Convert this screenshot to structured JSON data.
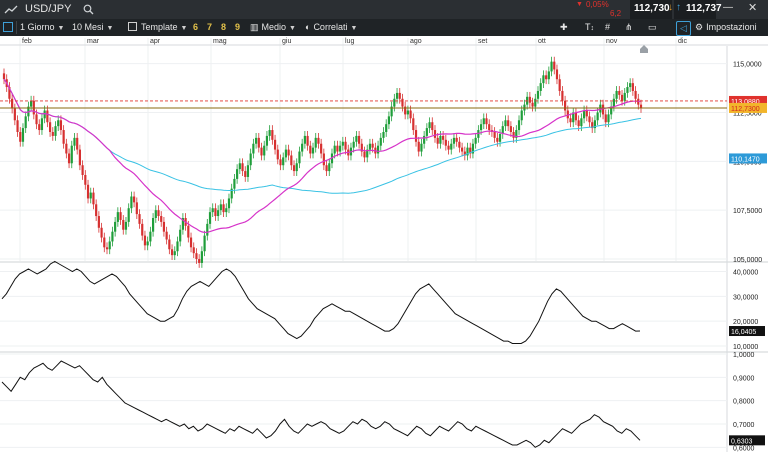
{
  "header": {
    "symbol": "USD/JPY",
    "change_pct": "0,05%",
    "change_abs": "6,2",
    "sell_price": "112,730",
    "buy_price": "112,737",
    "colors": {
      "down": "#e0322d",
      "sell_arrow": "#e09a2d",
      "buy_arrow": "#3fa0d8"
    }
  },
  "toolbar": {
    "interval": "1 Giorno",
    "range": "10 Mesi",
    "template": "Template",
    "periods": [
      "6",
      "7",
      "8",
      "9"
    ],
    "average": "Medio",
    "related": "Correlati",
    "settings": "Impostazioni"
  },
  "chart_data": [
    {
      "type": "candlestick",
      "months": [
        "feb",
        "mar",
        "apr",
        "mag",
        "giu",
        "lug",
        "ago",
        "set",
        "ott",
        "nov",
        "dic"
      ],
      "yticks": [
        "115,0000",
        "112,5000",
        "110,0000",
        "107,5000",
        "105,0000"
      ],
      "ylim": [
        104.9,
        115.9
      ],
      "series": [
        {
          "name": "price",
          "color_up": "#1f9e3a",
          "color_down": "#d63030",
          "close": [
            114.2,
            113.8,
            113.2,
            112.7,
            112.1,
            111.5,
            111.0,
            111.7,
            112.3,
            112.8,
            113.1,
            112.4,
            111.9,
            111.6,
            112.2,
            112.6,
            112.0,
            111.5,
            111.3,
            111.8,
            112.1,
            111.6,
            110.9,
            110.4,
            109.9,
            110.8,
            111.2,
            110.6,
            109.8,
            109.3,
            108.8,
            108.1,
            108.4,
            107.8,
            107.2,
            106.6,
            106.1,
            105.6,
            105.5,
            105.9,
            106.4,
            106.9,
            107.4,
            107.0,
            106.5,
            106.9,
            107.6,
            108.2,
            107.9,
            107.3,
            106.8,
            106.2,
            105.7,
            105.9,
            106.4,
            107.1,
            107.5,
            107.2,
            106.9,
            106.4,
            106.0,
            105.5,
            105.2,
            105.4,
            105.9,
            106.5,
            107.1,
            106.7,
            106.1,
            105.6,
            105.3,
            105.0,
            104.8,
            105.4,
            106.2,
            106.8,
            107.4,
            107.6,
            107.2,
            107.5,
            107.8,
            107.4,
            107.6,
            108.1,
            108.6,
            109.1,
            109.6,
            109.9,
            109.5,
            109.2,
            109.8,
            110.4,
            110.9,
            111.2,
            110.7,
            110.3,
            110.8,
            111.3,
            111.6,
            111.1,
            110.6,
            110.1,
            109.8,
            110.2,
            110.6,
            110.3,
            109.8,
            109.5,
            109.9,
            110.5,
            110.9,
            111.3,
            110.8,
            110.4,
            110.7,
            111.2,
            110.9,
            110.4,
            109.8,
            109.5,
            109.9,
            110.4,
            110.8,
            110.5,
            110.8,
            111.0,
            110.6,
            110.3,
            110.7,
            111.0,
            111.3,
            110.9,
            110.5,
            110.2,
            110.6,
            110.9,
            110.7,
            110.4,
            110.8,
            111.2,
            111.5,
            111.9,
            112.3,
            112.8,
            113.2,
            113.5,
            113.2,
            112.8,
            112.4,
            112.6,
            112.2,
            111.6,
            111.0,
            110.5,
            110.9,
            111.3,
            111.7,
            112.0,
            111.6,
            111.2,
            110.9,
            111.3,
            111.1,
            110.8,
            110.6,
            110.9,
            111.2,
            111.0,
            110.7,
            110.5,
            110.3,
            110.7,
            110.4,
            110.9,
            111.2,
            111.6,
            111.9,
            112.2,
            111.9,
            111.6,
            111.5,
            111.2,
            111.0,
            111.4,
            111.8,
            112.1,
            111.8,
            111.5,
            111.2,
            111.6,
            112.1,
            112.6,
            112.9,
            113.3,
            113.0,
            112.8,
            113.2,
            113.6,
            114.0,
            114.4,
            114.2,
            114.6,
            115.1,
            114.7,
            114.2,
            113.6,
            113.1,
            112.6,
            112.2,
            112.0,
            112.5,
            112.1,
            111.8,
            112.2,
            112.6,
            112.3,
            112.0,
            111.7,
            112.1,
            112.5,
            112.9,
            112.4,
            112.0,
            112.4,
            112.8,
            113.2,
            113.6,
            113.4,
            113.1,
            113.5,
            113.8,
            114.0,
            113.6,
            113.2,
            112.9,
            112.73
          ]
        },
        {
          "name": "MA short",
          "color": "#d633c9"
        },
        {
          "name": "MA long",
          "color": "#39c2e4"
        }
      ],
      "price_labels": [
        {
          "text": "113,0880",
          "color": "#e0322d"
        },
        {
          "text": "112,7300",
          "color": "#f2b52b"
        },
        {
          "text": "110,1470",
          "color": "#2d9ad8"
        }
      ]
    },
    {
      "type": "line",
      "yticks": [
        "40,0000",
        "30,0000",
        "20,0000",
        "10,0000"
      ],
      "ylim": [
        8,
        43
      ],
      "last_label": "16,0405",
      "series": [
        {
          "color": "#111111",
          "values": [
            29,
            31,
            34,
            37,
            39,
            40,
            41,
            40,
            39,
            40,
            41,
            43,
            44,
            43,
            42,
            41,
            40,
            41,
            40,
            38,
            36,
            35,
            36,
            37,
            38,
            39,
            38,
            36,
            34,
            31,
            29,
            27,
            25,
            23,
            22,
            21,
            20,
            20,
            21,
            22,
            25,
            29,
            32,
            34,
            35,
            36,
            35,
            34,
            36,
            38,
            40,
            41,
            40,
            38,
            35,
            32,
            29,
            27,
            25,
            24,
            23,
            22,
            21,
            19,
            17,
            15,
            14,
            13,
            14,
            16,
            18,
            21,
            23,
            25,
            26,
            27,
            26,
            25,
            24,
            24,
            23,
            22,
            21,
            20,
            19,
            18,
            17,
            16,
            16,
            17,
            19,
            22,
            25,
            28,
            31,
            33,
            34,
            35,
            33,
            31,
            29,
            27,
            25,
            23,
            22,
            21,
            20,
            19,
            18,
            17,
            16,
            15,
            14,
            13,
            12,
            12,
            11,
            11,
            11,
            12,
            14,
            17,
            20,
            24,
            28,
            31,
            33,
            32,
            30,
            28,
            26,
            24,
            22,
            21,
            20,
            20,
            19,
            18,
            17,
            17,
            18,
            19,
            18,
            17,
            16,
            16.04
          ]
        }
      ]
    },
    {
      "type": "line",
      "yticks": [
        "1,0000",
        "0,9000",
        "0,8000",
        "0,7000",
        "0,6000"
      ],
      "ylim": [
        0.58,
        1.0
      ],
      "last_label": "0,6303",
      "series": [
        {
          "color": "#111111",
          "values": [
            0.88,
            0.86,
            0.84,
            0.87,
            0.9,
            0.89,
            0.92,
            0.94,
            0.95,
            0.96,
            0.94,
            0.93,
            0.95,
            0.97,
            0.96,
            0.95,
            0.94,
            0.95,
            0.93,
            0.91,
            0.89,
            0.88,
            0.9,
            0.87,
            0.85,
            0.83,
            0.81,
            0.79,
            0.78,
            0.77,
            0.76,
            0.75,
            0.74,
            0.73,
            0.72,
            0.71,
            0.72,
            0.71,
            0.7,
            0.69,
            0.7,
            0.68,
            0.69,
            0.67,
            0.68,
            0.7,
            0.69,
            0.68,
            0.67,
            0.66,
            0.68,
            0.67,
            0.69,
            0.68,
            0.67,
            0.66,
            0.68,
            0.66,
            0.64,
            0.65,
            0.67,
            0.7,
            0.72,
            0.69,
            0.67,
            0.66,
            0.68,
            0.7,
            0.69,
            0.7,
            0.71,
            0.7,
            0.68,
            0.67,
            0.66,
            0.67,
            0.69,
            0.71,
            0.7,
            0.72,
            0.71,
            0.69,
            0.68,
            0.69,
            0.71,
            0.7,
            0.68,
            0.67,
            0.66,
            0.65,
            0.67,
            0.69,
            0.68,
            0.66,
            0.65,
            0.67,
            0.69,
            0.68,
            0.67,
            0.69,
            0.71,
            0.7,
            0.68,
            0.67,
            0.69,
            0.68,
            0.67,
            0.66,
            0.65,
            0.64,
            0.63,
            0.62,
            0.61,
            0.61,
            0.62,
            0.63,
            0.62,
            0.6,
            0.61,
            0.63,
            0.62,
            0.64,
            0.66,
            0.68,
            0.67,
            0.66,
            0.68,
            0.7,
            0.71,
            0.72,
            0.74,
            0.73,
            0.71,
            0.7,
            0.69,
            0.67,
            0.66,
            0.68,
            0.67,
            0.65,
            0.63
          ]
        }
      ]
    }
  ]
}
